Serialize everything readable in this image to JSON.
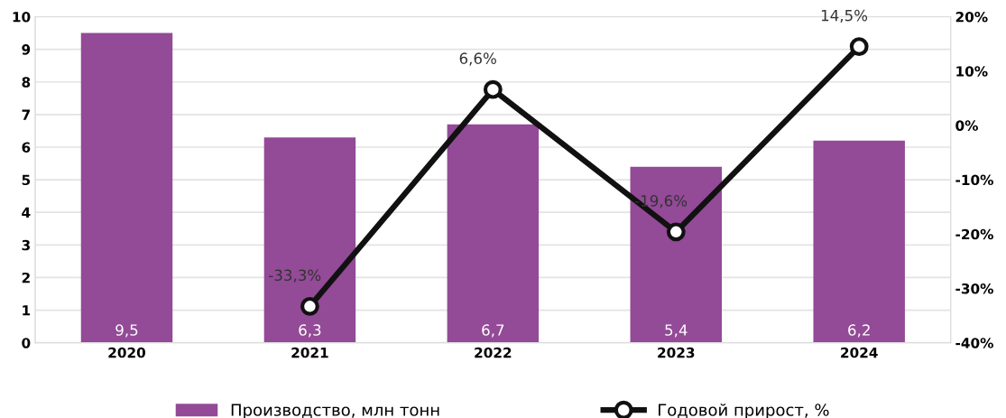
{
  "chart_data": {
    "type": "bar",
    "categories": [
      "2020",
      "2021",
      "2022",
      "2023",
      "2024"
    ],
    "series": [
      {
        "name": "Производство, млн тонн",
        "color": "#934a97",
        "values": [
          9.5,
          6.3,
          6.7,
          5.4,
          6.2
        ],
        "value_labels": [
          "9,5",
          "6,3",
          "6,7",
          "5,4",
          "6,2"
        ]
      },
      {
        "name": "Годовой прирост, %",
        "type": "line",
        "axis": "y2",
        "color": "#111111",
        "marker": "circle",
        "values": [
          null,
          -33.3,
          6.6,
          -19.6,
          14.5
        ],
        "value_labels": [
          null,
          "-33,3%",
          "6,6%",
          "-19,6%",
          "14,5%"
        ]
      }
    ],
    "ylim": [
      0,
      10
    ],
    "yticks": [
      0,
      1,
      2,
      3,
      4,
      5,
      6,
      7,
      8,
      9,
      10
    ],
    "y2lim": [
      -40,
      20
    ],
    "y2ticks": [
      {
        "value": -40,
        "label": "-40%"
      },
      {
        "value": -30,
        "label": "-30%"
      },
      {
        "value": -20,
        "label": "-20%"
      },
      {
        "value": -10,
        "label": "-10%"
      },
      {
        "value": 0,
        "label": "0%"
      },
      {
        "value": 10,
        "label": "10%"
      },
      {
        "value": 20,
        "label": "20%"
      }
    ],
    "grid": "y",
    "legend": "bottom"
  }
}
